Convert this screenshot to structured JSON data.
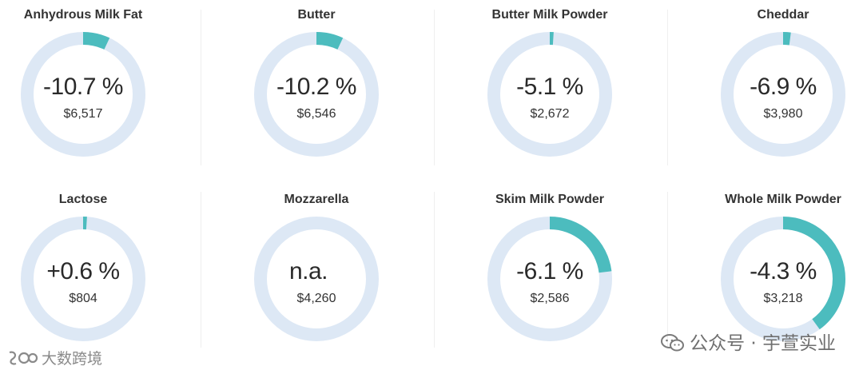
{
  "chart_data": {
    "type": "donut",
    "colors": {
      "fill": "#4cbcbe",
      "track": "#dde8f5"
    },
    "items": [
      {
        "title": "Anhydrous Milk Fat",
        "change": -10.7,
        "change_label": "-10.7 %",
        "price": "$6,517"
      },
      {
        "title": "Butter",
        "change": -10.2,
        "change_label": "-10.2 %",
        "price": "$6,546"
      },
      {
        "title": "Butter Milk Powder",
        "change": -5.1,
        "change_label": "-5.1 %",
        "price": "$2,672"
      },
      {
        "title": "Cheddar",
        "change": -6.9,
        "change_label": "-6.9 %",
        "price": "$3,980"
      },
      {
        "title": "Lactose",
        "change": 0.6,
        "change_label": "+0.6 %",
        "price": "$804"
      },
      {
        "title": "Mozzarella",
        "change": null,
        "change_label": "n.a.",
        "price": "$4,260"
      },
      {
        "title": "Skim Milk Powder",
        "change": -6.1,
        "change_label": "-6.1 %",
        "price": "$2,586"
      },
      {
        "title": "Whole Milk Powder",
        "change": -4.3,
        "change_label": "-4.3 %",
        "price": "$3,218"
      }
    ],
    "arc_fraction": [
      0.07,
      0.07,
      0.01,
      0.02,
      0.01,
      0,
      0.23,
      0.4
    ]
  },
  "watermark": {
    "text": "公众号 · 宇萱实业",
    "icon": "wechat-icon"
  },
  "logo": {
    "text": "大数跨境",
    "icon": "logo-mark-icon"
  }
}
